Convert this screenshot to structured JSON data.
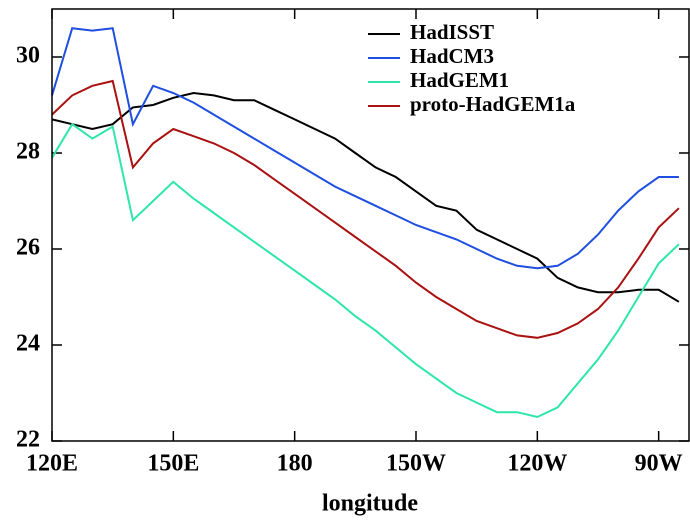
{
  "chart_data": {
    "type": "line",
    "xlabel": "longitude",
    "x": [
      120,
      125,
      130,
      135,
      140,
      145,
      150,
      155,
      160,
      165,
      170,
      175,
      180,
      185,
      190,
      195,
      200,
      205,
      210,
      215,
      220,
      225,
      230,
      235,
      240,
      245,
      250,
      255,
      260,
      265,
      270,
      275
    ],
    "series": [
      {
        "name": "HadISST",
        "color": "#000000",
        "values": [
          28.7,
          28.6,
          28.5,
          28.6,
          28.95,
          29.0,
          29.15,
          29.25,
          29.2,
          29.1,
          29.1,
          28.9,
          28.7,
          28.5,
          28.3,
          28.0,
          27.7,
          27.5,
          27.2,
          26.9,
          26.8,
          26.4,
          26.2,
          26.0,
          25.8,
          25.4,
          25.2,
          25.1,
          25.1,
          25.15,
          25.15,
          24.9
        ]
      },
      {
        "name": "HadCM3",
        "color": "#1f4fe0",
        "values": [
          29.2,
          30.6,
          30.55,
          30.6,
          28.6,
          29.4,
          29.25,
          29.05,
          28.8,
          28.55,
          28.3,
          28.05,
          27.8,
          27.55,
          27.3,
          27.1,
          26.9,
          26.7,
          26.5,
          26.35,
          26.2,
          26.0,
          25.8,
          25.65,
          25.6,
          25.65,
          25.9,
          26.3,
          26.8,
          27.2,
          27.5,
          27.5
        ]
      },
      {
        "name": "HadGEM1",
        "color": "#2ee6a8",
        "values": [
          27.9,
          28.6,
          28.3,
          28.55,
          26.6,
          27.0,
          27.4,
          27.05,
          26.75,
          26.45,
          26.15,
          25.85,
          25.55,
          25.25,
          24.95,
          24.6,
          24.3,
          23.95,
          23.6,
          23.3,
          23.0,
          22.8,
          22.6,
          22.6,
          22.5,
          22.7,
          23.2,
          23.7,
          24.3,
          25.0,
          25.7,
          26.1
        ]
      },
      {
        "name": "proto-HadGEM1a",
        "color": "#aa1111",
        "values": [
          28.8,
          29.2,
          29.4,
          29.5,
          27.7,
          28.2,
          28.5,
          28.35,
          28.2,
          28.0,
          27.75,
          27.45,
          27.15,
          26.85,
          26.55,
          26.25,
          25.95,
          25.65,
          25.3,
          25.0,
          24.75,
          24.5,
          24.35,
          24.2,
          24.15,
          24.25,
          24.45,
          24.75,
          25.2,
          25.8,
          26.45,
          26.85
        ]
      }
    ],
    "xlim": [
      120,
      277.5
    ],
    "xticks": [
      {
        "value": 120,
        "label": "120E"
      },
      {
        "value": 150,
        "label": "150E"
      },
      180,
      {
        "value": 210,
        "label": "150W"
      },
      {
        "value": 240,
        "label": "120W"
      },
      {
        "value": 270,
        "label": "90W"
      }
    ],
    "ylim": [
      22,
      31
    ],
    "yticks": [
      22,
      24,
      26,
      28,
      30
    ],
    "legend": "upper right"
  }
}
